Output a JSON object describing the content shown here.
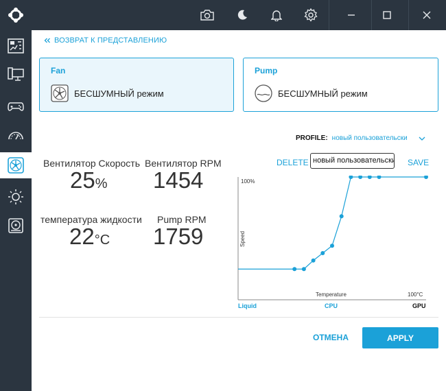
{
  "titlebar": {
    "icons": [
      "camera-icon",
      "moon-icon",
      "bell-icon",
      "gear-icon",
      "minimize-icon",
      "maximize-icon",
      "close-icon"
    ]
  },
  "sidebar": {
    "items": [
      {
        "icon": "dashboard-icon"
      },
      {
        "icon": "monitor-icon"
      },
      {
        "icon": "gamepad-icon"
      },
      {
        "icon": "gauge-icon"
      },
      {
        "icon": "fan-icon",
        "active": true
      },
      {
        "icon": "sun-icon"
      },
      {
        "icon": "storage-icon"
      }
    ]
  },
  "back": {
    "label": "ВОЗВРАТ К ПРЕДСТАВЛЕНИЮ"
  },
  "cards": {
    "fan": {
      "title": "Fan",
      "mode": "БЕСШУМНЫЙ режим",
      "selected": true
    },
    "pump": {
      "title": "Pump",
      "mode": "БЕСШУМНЫЙ режим",
      "selected": false
    }
  },
  "profile": {
    "label": "PROFILE:",
    "value": "новый пользовательски",
    "delete_label": "DELETE",
    "name_value": "новый пользовательский",
    "save_label": "SAVE"
  },
  "stats": {
    "fan_speed_label": "Вентилятор Скорость",
    "fan_speed_value": "25",
    "fan_speed_unit": "%",
    "fan_rpm_label": "Вентилятор RPM",
    "fan_rpm_value": "1454",
    "liquid_temp_label": "температура жидкости",
    "liquid_temp_value": "22",
    "liquid_temp_unit": "°C",
    "pump_rpm_label": "Pump RPM",
    "pump_rpm_value": "1759"
  },
  "chart_data": {
    "type": "line",
    "ylabel": "Speed",
    "xlabel": "Temperature",
    "y_max_label": "100%",
    "x_max_label": "100°C",
    "ylim": [
      0,
      100
    ],
    "xlim": [
      0,
      100
    ],
    "sources": [
      "Liquid",
      "CPU",
      "GPU"
    ],
    "points": [
      {
        "x": 0,
        "y": 25
      },
      {
        "x": 25,
        "y": 25
      },
      {
        "x": 30,
        "y": 25
      },
      {
        "x": 35,
        "y": 25
      },
      {
        "x": 40,
        "y": 32
      },
      {
        "x": 45,
        "y": 38
      },
      {
        "x": 50,
        "y": 44
      },
      {
        "x": 55,
        "y": 68
      },
      {
        "x": 60,
        "y": 100
      },
      {
        "x": 65,
        "y": 100
      },
      {
        "x": 70,
        "y": 100
      },
      {
        "x": 75,
        "y": 100
      },
      {
        "x": 100,
        "y": 100
      }
    ],
    "markers": [
      2,
      3,
      4,
      5,
      6,
      7,
      8,
      9,
      10,
      11,
      12
    ],
    "color": "#1ba1d8"
  },
  "actions": {
    "cancel_label": "ОТМЕНА",
    "apply_label": "APPLY"
  }
}
